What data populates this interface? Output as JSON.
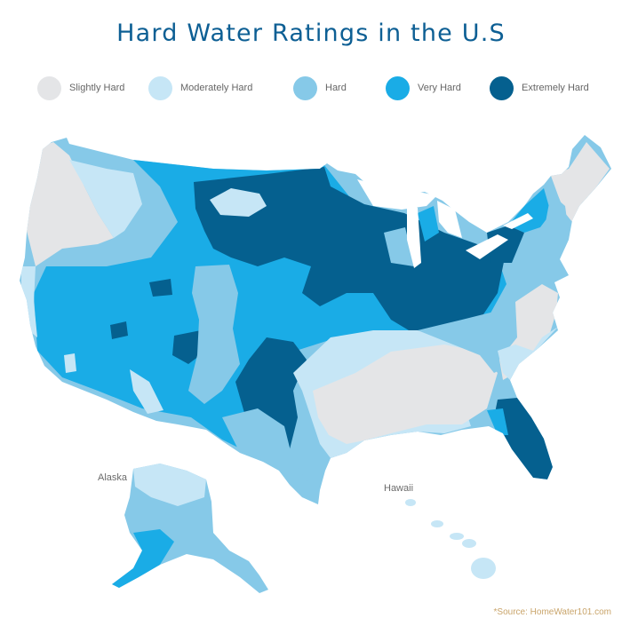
{
  "title": "Hard Water Ratings in the U.S",
  "legend": [
    {
      "label": "Slightly Hard",
      "color": "#e4e5e7"
    },
    {
      "label": "Moderately Hard",
      "color": "#c6e6f6"
    },
    {
      "label": "Hard",
      "color": "#86c9e8"
    },
    {
      "label": "Very Hard",
      "color": "#1aace6"
    },
    {
      "label": "Extremely Hard",
      "color": "#05608f"
    }
  ],
  "labels": {
    "alaska": "Alaska",
    "hawaii": "Hawaii"
  },
  "source": "*Source: HomeWater101.com"
}
